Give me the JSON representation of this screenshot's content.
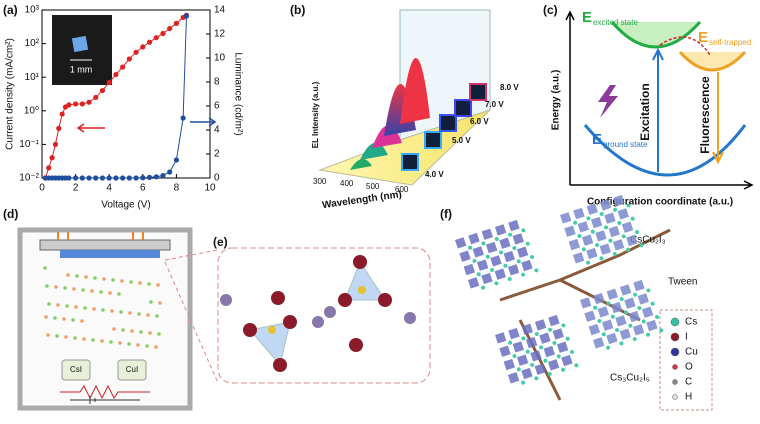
{
  "chart_data": {
    "type": "line",
    "ylabel": "Current density (mA/cm²)",
    "y2label": "Luminance (cd/m²)",
    "xlabel": "Voltage (V)",
    "ylog": true,
    "x": [
      0.2,
      0.4,
      0.6,
      0.8,
      1.0,
      1.2,
      1.4,
      1.6,
      2.0,
      2.4,
      2.8,
      3.2,
      3.6,
      4.0,
      4.4,
      4.8,
      5.2,
      5.6,
      6.0,
      6.4,
      6.8,
      7.2,
      7.6,
      8.0,
      8.4,
      8.6
    ],
    "series": [
      {
        "color": "#dd2222",
        "axis": "y",
        "values": [
          0.01,
          0.02,
          0.04,
          0.1,
          0.3,
          0.8,
          1.3,
          1.5,
          1.6,
          1.6,
          1.8,
          2.5,
          4,
          7,
          12,
          20,
          35,
          55,
          80,
          110,
          150,
          200,
          280,
          400,
          600,
          700
        ]
      },
      {
        "color": "#1f4e9e",
        "axis": "y2",
        "values": [
          0,
          0,
          0,
          0,
          0,
          0,
          0,
          0,
          0,
          0,
          0,
          0,
          0,
          0,
          0,
          0,
          0,
          0,
          0.02,
          0.05,
          0.1,
          0.2,
          0.5,
          1.5,
          5,
          13.5
        ]
      }
    ],
    "xlim": [
      0,
      10
    ],
    "xticks": [
      0,
      2,
      4,
      6,
      8,
      10
    ],
    "ylim": [
      0.01,
      1000
    ],
    "yticks": [
      {
        "value": 0.01,
        "label": "10⁻²"
      },
      {
        "value": 0.1,
        "label": "10⁻¹"
      },
      {
        "value": 1,
        "label": "10⁰"
      },
      {
        "value": 10,
        "label": "10¹"
      },
      {
        "value": 100,
        "label": "10²"
      },
      {
        "value": 1000,
        "label": "10³"
      }
    ],
    "y2lim": [
      0,
      14
    ],
    "y2ticks": [
      0,
      2,
      4,
      6,
      8,
      10,
      12,
      14
    ],
    "inset_label": "1 mm"
  },
  "panels": {
    "labels": [
      "(a)",
      "(b)",
      "(c)",
      "(d)",
      "(e)",
      "(f)"
    ],
    "b": {
      "ylabel": "EL Intensity (a.u.)",
      "xlabel": "Wavelength (nm)",
      "xticks": [
        "300",
        "400",
        "500",
        "600"
      ],
      "voltages": [
        "8.0 V",
        "7.0 V",
        "6.0 V",
        "5.0 V",
        "4.0 V"
      ]
    },
    "c": {
      "ylabel": "Energy (a.u.)",
      "xlabel": "Configuration coordinate (a.u.)",
      "e": [
        "E",
        "E",
        "E"
      ],
      "states": [
        "excited state",
        "self-trapped",
        "ground state"
      ],
      "excitation": "Excitation",
      "fluorescence": "Fluorescence"
    },
    "d": {
      "crucibles": [
        "CsI",
        "CuI"
      ]
    },
    "f": {
      "labels": [
        "CsCu₂I₃",
        "Tween",
        "Cs₃Cu₂I₅"
      ],
      "legend": [
        "Cs",
        "I",
        "Cu",
        "O",
        "C",
        "H"
      ]
    }
  }
}
